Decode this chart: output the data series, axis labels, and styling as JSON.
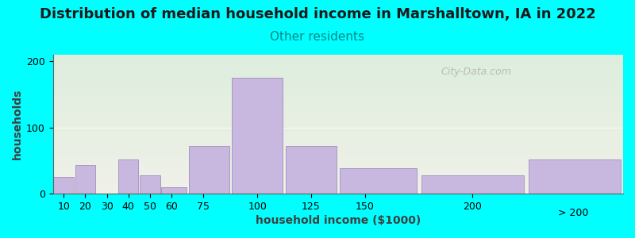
{
  "title": "Distribution of median household income in Marshalltown, IA in 2022",
  "subtitle": "Other residents",
  "xlabel": "household income ($1000)",
  "ylabel": "households",
  "background_outer": "#00FFFF",
  "bar_color": "#c8b8e0",
  "bar_edge_color": "#a090c0",
  "categories_labels": [
    "10",
    "20",
    "30",
    "40",
    "50",
    "60",
    "75",
    "100",
    "125",
    "150",
    "200",
    "> 200"
  ],
  "bin_edges": [
    5,
    15,
    25,
    35,
    45,
    55,
    67.5,
    87.5,
    112.5,
    137.5,
    175,
    225,
    270
  ],
  "tick_positions": [
    10,
    20,
    30,
    40,
    50,
    60,
    75,
    100,
    125,
    150,
    200
  ],
  "values": [
    25,
    43,
    0,
    52,
    28,
    10,
    72,
    175,
    72,
    38,
    28,
    52
  ],
  "xlim": [
    5,
    270
  ],
  "ylim": [
    0,
    210
  ],
  "yticks": [
    0,
    100,
    200
  ],
  "title_fontsize": 13,
  "subtitle_fontsize": 11,
  "subtitle_color": "#008888",
  "axis_label_fontsize": 10,
  "tick_fontsize": 9,
  "watermark_text": "City-Data.com",
  "watermark_color": "#aaaaaa",
  "gradient_top": "#ddeedd",
  "gradient_bottom": "#f0f0e8"
}
